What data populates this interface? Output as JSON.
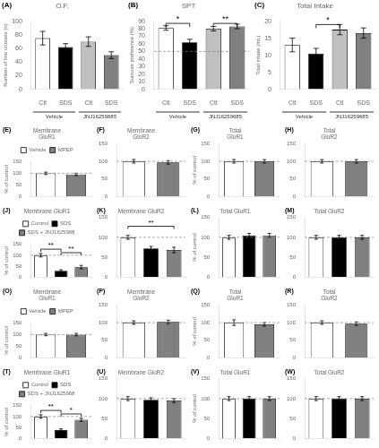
{
  "chart_data": [
    {
      "type": "bar",
      "title": "O.F.",
      "ylabel": "Number of line crosses (n)",
      "categories": [
        "Ctl",
        "SDS",
        "Ctl",
        "SDS"
      ],
      "values": [
        75,
        62,
        70,
        50
      ],
      "errors": [
        10,
        5,
        7,
        5
      ],
      "colors": [
        "white",
        "black",
        "silver",
        "gray"
      ],
      "ylim": [
        0,
        100
      ],
      "yticks": [
        0,
        20,
        40,
        60,
        80,
        100
      ],
      "grid": false,
      "annotations": [
        {
          "text": "(A)"
        },
        {
          "text": "Vehicle",
          "span": [
            0,
            1
          ]
        },
        {
          "text": "JNJ16259685",
          "span": [
            2,
            3
          ]
        }
      ]
    },
    {
      "type": "bar",
      "title": "SPT",
      "ylabel": "Sucrose preference (%)",
      "categories": [
        "Ctl",
        "SDS",
        "Ctl",
        "SDS"
      ],
      "values": [
        81,
        62,
        80,
        83
      ],
      "errors": [
        3,
        4,
        3,
        3
      ],
      "colors": [
        "white",
        "black",
        "silver",
        "gray"
      ],
      "ylim": [
        0,
        90
      ],
      "yticks": [
        0,
        10,
        20,
        30,
        40,
        50,
        60,
        70,
        80,
        90
      ],
      "grid": false,
      "reference_line": 50,
      "annotations": [
        {
          "text": "(B)"
        },
        {
          "text": "Vehicle",
          "span": [
            0,
            1
          ]
        },
        {
          "text": "JNJ16259685",
          "span": [
            2,
            3
          ]
        },
        {
          "text": "*",
          "span": [
            0,
            1
          ],
          "y": 87
        },
        {
          "text": "**",
          "span": [
            2,
            3
          ],
          "y": 87
        }
      ]
    },
    {
      "type": "bar",
      "title": "Total Intake",
      "ylabel": "Total intake (mL)",
      "categories": [
        "Ctl",
        "SDS",
        "Ctl",
        "SDS"
      ],
      "values": [
        13,
        10.5,
        17.5,
        16.5
      ],
      "errors": [
        2,
        1.5,
        1.5,
        1.5
      ],
      "colors": [
        "white",
        "black",
        "silver",
        "gray"
      ],
      "ylim": [
        0,
        20
      ],
      "yticks": [
        0,
        5,
        10,
        15,
        20
      ],
      "grid": false,
      "annotations": [
        {
          "text": "(C)"
        },
        {
          "text": "Vehicle",
          "span": [
            0,
            1
          ]
        },
        {
          "text": "JNJ16259685",
          "span": [
            2,
            3
          ]
        },
        {
          "text": "*",
          "span": [
            1,
            2
          ],
          "y": 19
        }
      ]
    },
    {
      "type": "bar",
      "title": "Membrane\nGluR1",
      "ylabel": "% of control",
      "categories": [
        null,
        null
      ],
      "series": [
        {
          "name": "Vehicle",
          "color": "white",
          "values": [
            100,
            null
          ],
          "errors": [
            5,
            null
          ]
        },
        {
          "name": "MPEP",
          "color": "gray",
          "values": [
            null,
            95
          ],
          "errors": [
            null,
            5
          ]
        }
      ],
      "legend": "top",
      "ylim": [
        0,
        150
      ],
      "yticks": [
        0,
        50,
        100,
        150
      ],
      "reference_line": 100,
      "grid": false,
      "tick_labels": "y",
      "annotations": [
        {
          "text": "(E)"
        }
      ]
    },
    {
      "type": "bar",
      "title": "Membrane\nGluR2",
      "categories": [
        null,
        null
      ],
      "values": [
        100,
        97
      ],
      "errors": [
        5,
        5
      ],
      "colors": [
        "white",
        "gray"
      ],
      "ylim": [
        0,
        150
      ],
      "yticks": [
        0,
        50,
        100,
        150
      ],
      "reference_line": 100,
      "grid": false,
      "tick_labels": "y",
      "annotations": [
        {
          "text": "(F)"
        }
      ]
    },
    {
      "type": "bar",
      "title": "Total\nGluR1",
      "ylabel": "% of control",
      "categories": [
        null,
        null
      ],
      "values": [
        100,
        100
      ],
      "errors": [
        5,
        5
      ],
      "colors": [
        "white",
        "gray"
      ],
      "ylim": [
        0,
        150
      ],
      "yticks": [
        0,
        50,
        100,
        150
      ],
      "reference_line": 100,
      "grid": false,
      "tick_labels": "y",
      "annotations": [
        {
          "text": "(G)"
        }
      ]
    },
    {
      "type": "bar",
      "title": "Total\nGluR2",
      "categories": [
        null,
        null
      ],
      "values": [
        100,
        100
      ],
      "errors": [
        5,
        5
      ],
      "colors": [
        "white",
        "gray"
      ],
      "ylim": [
        0,
        150
      ],
      "yticks": [
        0,
        50,
        100,
        150
      ],
      "reference_line": 100,
      "grid": false,
      "tick_labels": "y",
      "annotations": [
        {
          "text": "(H)"
        }
      ]
    },
    {
      "type": "bar",
      "title": "Membrane GluR1",
      "ylabel": "% of control",
      "categories": [
        null,
        null,
        null
      ],
      "series": [
        {
          "name": "Control",
          "color": "white",
          "values": [
            100,
            null,
            null
          ],
          "errors": [
            8,
            null,
            null
          ]
        },
        {
          "name": "SDS",
          "color": "black",
          "values": [
            null,
            28,
            null
          ],
          "errors": [
            null,
            5,
            null
          ]
        },
        {
          "name": "SDS + JNJ1625968",
          "color": "gray",
          "values": [
            null,
            null,
            45
          ],
          "errors": [
            null,
            null,
            8
          ]
        }
      ],
      "legend": "top",
      "ylim": [
        0,
        150
      ],
      "yticks": [
        0,
        50,
        100,
        150
      ],
      "reference_line": 100,
      "grid": false,
      "tick_labels": "y",
      "annotations": [
        {
          "text": "(J)"
        },
        {
          "text": "**",
          "span": [
            0,
            1
          ],
          "y": 128
        },
        {
          "text": "**",
          "span": [
            1,
            2
          ],
          "y": 112
        }
      ]
    },
    {
      "type": "bar",
      "title": "Membrane GluR2",
      "categories": [
        null,
        null,
        null
      ],
      "values": [
        100,
        72,
        68
      ],
      "errors": [
        5,
        5,
        7
      ],
      "colors": [
        "white",
        "black",
        "gray"
      ],
      "ylim": [
        0,
        150
      ],
      "yticks": [
        0,
        50,
        100,
        150
      ],
      "reference_line": 100,
      "grid": false,
      "tick_labels": "y",
      "annotations": [
        {
          "text": "(K)"
        },
        {
          "text": "**",
          "span": [
            0,
            2
          ],
          "y": 128
        }
      ]
    },
    {
      "type": "bar",
      "title": "Total GluR1",
      "ylabel": "% of control",
      "categories": [
        null,
        null,
        null
      ],
      "values": [
        100,
        105,
        105
      ],
      "errors": [
        5,
        5,
        5
      ],
      "colors": [
        "white",
        "black",
        "gray"
      ],
      "ylim": [
        0,
        150
      ],
      "yticks": [
        0,
        50,
        100,
        150
      ],
      "reference_line": 100,
      "grid": false,
      "tick_labels": "y",
      "annotations": [
        {
          "text": "(L)"
        }
      ]
    },
    {
      "type": "bar",
      "title": "Total GluR2",
      "categories": [
        null,
        null,
        null
      ],
      "values": [
        100,
        100,
        100
      ],
      "errors": [
        5,
        5,
        5
      ],
      "colors": [
        "white",
        "black",
        "gray"
      ],
      "ylim": [
        0,
        150
      ],
      "yticks": [
        0,
        50,
        100,
        150
      ],
      "reference_line": 100,
      "grid": false,
      "tick_labels": "y",
      "annotations": [
        {
          "text": "(M)"
        }
      ]
    },
    {
      "type": "bar",
      "title": "Membrane\nGluR1",
      "ylabel": "% of control",
      "categories": [
        null,
        null
      ],
      "series": [
        {
          "name": "Vehicle",
          "color": "white",
          "values": [
            100,
            null
          ],
          "errors": [
            5,
            null
          ]
        },
        {
          "name": "MPEP",
          "color": "gray",
          "values": [
            null,
            100
          ],
          "errors": [
            null,
            5
          ]
        }
      ],
      "legend": "top",
      "ylim": [
        0,
        150
      ],
      "yticks": [
        0,
        50,
        100,
        150
      ],
      "reference_line": 100,
      "grid": false,
      "tick_labels": "y",
      "annotations": [
        {
          "text": "(O)"
        }
      ]
    },
    {
      "type": "bar",
      "title": "Membrane\nGluR2",
      "categories": [
        null,
        null
      ],
      "values": [
        100,
        102
      ],
      "errors": [
        5,
        5
      ],
      "colors": [
        "white",
        "gray"
      ],
      "ylim": [
        0,
        150
      ],
      "yticks": [
        0,
        50,
        100,
        150
      ],
      "reference_line": 100,
      "grid": false,
      "tick_labels": "y",
      "annotations": [
        {
          "text": "(P)"
        }
      ]
    },
    {
      "type": "bar",
      "title": "Total\nGluR1",
      "ylabel": "% of control",
      "categories": [
        null,
        null
      ],
      "values": [
        100,
        95
      ],
      "errors": [
        8,
        5
      ],
      "colors": [
        "white",
        "gray"
      ],
      "ylim": [
        0,
        150
      ],
      "yticks": [
        0,
        50,
        100,
        150
      ],
      "reference_line": 100,
      "grid": false,
      "tick_labels": "y",
      "annotations": [
        {
          "text": "(Q)"
        }
      ]
    },
    {
      "type": "bar",
      "title": "Total\nGluR2",
      "categories": [
        null,
        null
      ],
      "values": [
        100,
        97
      ],
      "errors": [
        5,
        5
      ],
      "colors": [
        "white",
        "gray"
      ],
      "ylim": [
        0,
        150
      ],
      "yticks": [
        0,
        50,
        100,
        150
      ],
      "reference_line": 100,
      "grid": false,
      "tick_labels": "y",
      "annotations": [
        {
          "text": "(R)"
        }
      ]
    },
    {
      "type": "bar",
      "title": "Membrane GluR1",
      "ylabel": "% of control",
      "categories": [
        null,
        null,
        null
      ],
      "series": [
        {
          "name": "Control",
          "color": "white",
          "values": [
            100,
            null,
            null
          ],
          "errors": [
            8,
            null,
            null
          ]
        },
        {
          "name": "SDS",
          "color": "black",
          "values": [
            null,
            38,
            null
          ],
          "errors": [
            null,
            5,
            null
          ]
        },
        {
          "name": "SDS + JNJ1625968",
          "color": "gray",
          "values": [
            null,
            null,
            85
          ],
          "errors": [
            null,
            null,
            7
          ]
        }
      ],
      "legend": "top",
      "ylim": [
        0,
        150
      ],
      "yticks": [
        0,
        50,
        100,
        150
      ],
      "reference_line": 100,
      "grid": false,
      "tick_labels": "y",
      "annotations": [
        {
          "text": "(T)"
        },
        {
          "text": "**",
          "span": [
            0,
            1
          ],
          "y": 128
        },
        {
          "text": "*",
          "span": [
            1,
            2
          ],
          "y": 112
        }
      ]
    },
    {
      "type": "bar",
      "title": "Membrane GluR2",
      "categories": [
        null,
        null,
        null
      ],
      "values": [
        100,
        97,
        95
      ],
      "errors": [
        5,
        5,
        5
      ],
      "colors": [
        "white",
        "black",
        "gray"
      ],
      "ylim": [
        0,
        150
      ],
      "yticks": [
        0,
        50,
        100,
        150
      ],
      "reference_line": 100,
      "grid": false,
      "tick_labels": "y",
      "annotations": [
        {
          "text": "(U)"
        }
      ]
    },
    {
      "type": "bar",
      "title": "Total GluR1",
      "ylabel": "% of control",
      "categories": [
        null,
        null,
        null
      ],
      "values": [
        100,
        100,
        100
      ],
      "errors": [
        5,
        5,
        5
      ],
      "colors": [
        "white",
        "black",
        "gray"
      ],
      "ylim": [
        0,
        150
      ],
      "yticks": [
        0,
        50,
        100,
        150
      ],
      "reference_line": 100,
      "grid": false,
      "tick_labels": "y",
      "annotations": [
        {
          "text": "(V)"
        }
      ]
    },
    {
      "type": "bar",
      "title": "Total GluR2",
      "categories": [
        null,
        null,
        null
      ],
      "values": [
        100,
        100,
        100
      ],
      "errors": [
        5,
        5,
        5
      ],
      "colors": [
        "white",
        "black",
        "gray"
      ],
      "ylim": [
        0,
        150
      ],
      "yticks": [
        0,
        50,
        100,
        150
      ],
      "reference_line": 100,
      "grid": false,
      "tick_labels": "y",
      "annotations": [
        {
          "text": "(W)"
        }
      ]
    }
  ]
}
